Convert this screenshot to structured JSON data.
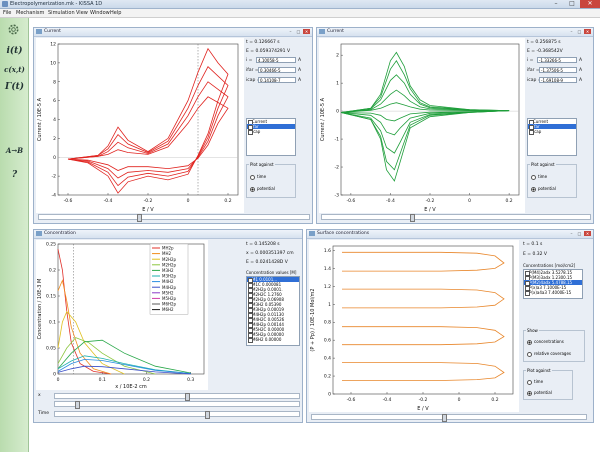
{
  "app": {
    "title": "Electropolymerization.mk - KISSA 1D"
  },
  "window_controls": {
    "minimize": "–",
    "maximize": "□",
    "close": "✕"
  },
  "menu": [
    "File",
    "Mechanism",
    "Simulation",
    "View",
    "Window",
    "Help"
  ],
  "sidebar": {
    "items": [
      "i(t)",
      "c(x,t)",
      "Γ(t)",
      "A→B",
      "?"
    ]
  },
  "panels": {
    "current_red": {
      "title": "Current",
      "t": "t = 0.126667 s",
      "E": "E = 0.059374291 V",
      "i_label": "i =",
      "i_val": "4.10058-5",
      "i_unit": "A",
      "ifar_label": "ifar =",
      "ifar_val": "0.30466-5",
      "ifar_unit": "A",
      "icap_label": "icap =",
      "icap_val": "0.14108-7",
      "icap_unit": "A",
      "list": [
        "Current",
        "ifar",
        "icap"
      ],
      "plot_against": "Plot against",
      "opt_time": "time",
      "opt_potential": "potential",
      "ylabel": "Current / 10E-5 A",
      "xlabel": "E / V",
      "yticks": [
        "12",
        "10",
        "8",
        "6",
        "4",
        "2",
        "0",
        "-2",
        "-4"
      ],
      "xticks": [
        "-0.6",
        "-0.4",
        "-0.2",
        "0",
        "0.2"
      ]
    },
    "current_green": {
      "title": "Current",
      "t": "t = 0.256875 s",
      "E": "E = -0.368542V",
      "i_label": "i =",
      "i_val": "-1.33266-5",
      "i_unit": "A",
      "ifar_label": "ifar =",
      "ifar_val": "-1.37506-5",
      "ifar_unit": "A",
      "icap_label": "icap =",
      "icap_val": "-1.69108-9",
      "icap_unit": "A",
      "list": [
        "Current",
        "ifar",
        "icap"
      ],
      "plot_against": "Plot against",
      "opt_time": "time",
      "opt_potential": "potential",
      "ylabel": "Current / 10E-5 A",
      "xlabel": "E / V",
      "yticks": [
        "2",
        "1",
        "0",
        "-1",
        "-2",
        "-3"
      ],
      "xticks": [
        "-0.6",
        "-0.4",
        "-0.2",
        "0",
        "0.2"
      ]
    },
    "concentration": {
      "title": "Concentration",
      "t": "t = 0.145208 s",
      "x": "x = 0.000351397 cm",
      "E": "E = 0.0241428D V",
      "cv_label": "Concentration values [M]",
      "cv": [
        "M1 0.0101...",
        "M1C   0.000081",
        "M2H2p 0.0001.",
        "M2H2C 1.2760",
        "M2H2p 0.06908",
        "M3H2  0.05390",
        "M3H2p 0.00019",
        "M4H2p 0.01130",
        "M4H2C 0.00526",
        "M4H2p 0.00144",
        "M5H2C 0.00000",
        "M5H2p 0.00000",
        "M6H2  0.00000"
      ],
      "legend": [
        "MH2p",
        "MH2",
        "M2H2p",
        "M2H2p",
        "M3H2",
        "M3H2p",
        "M4H2",
        "M4H2p",
        "M5H2",
        "M5H2p",
        "M6H2p",
        "M6H2"
      ],
      "legend_colors": [
        "#e0302a",
        "#f08c1c",
        "#e0c020",
        "#8cc63f",
        "#2aa84a",
        "#1cb0b0",
        "#2a8ce0",
        "#3a4ec8",
        "#8a3ac8",
        "#d03aa8",
        "#5a5a5a",
        "#1a1a1a"
      ],
      "ylabel": "Concentration / 10E-3 M",
      "xlabel": "x / 10E-2 cm",
      "yticks": [
        "0.25",
        "0.2",
        "0.15",
        "0.1",
        "0.05",
        "0"
      ],
      "xticks": [
        "0",
        "0.1",
        "0.2",
        "0.3"
      ],
      "x_slider_label": "x",
      "time_slider_label": "Time"
    },
    "surface": {
      "title": "Surface concentrations",
      "t": "t = 0.1 s",
      "E": "E = 0.32 V",
      "cv_label": "Concentrations [mol/cm2]",
      "cv": [
        "P(M4)2adx 3.5278.15",
        "P(M3)3adx 1.2300.15",
        "P(M2)4adx 5.4788.15",
        "P(x)a3   7.1000E-15",
        "P(x)a4a3 7.4000E-15"
      ],
      "show_label": "Show",
      "opt_conc": "concentrations",
      "opt_cov": "relative coverages",
      "plot_against": "Plot against",
      "opt_time": "time",
      "opt_potential": "potential",
      "ylabel": "(P + Pp) / 10E-10 Mol/m2",
      "xlabel": "E / V",
      "yticks": [
        "1.6",
        "1.4",
        "1.2",
        "1",
        "0.8",
        "0.6",
        "0.4",
        "0.2",
        "0"
      ],
      "xticks": [
        "-0.6",
        "-0.4",
        "-0.2",
        "0",
        "0.2"
      ]
    }
  },
  "chart_data": [
    {
      "type": "line",
      "xlabel": "E / V",
      "ylabel": "Current / 10E-5 A",
      "xlim": [
        -0.65,
        0.25
      ],
      "ylim": [
        -4,
        12
      ],
      "series": [
        {
          "x": [
            -0.6,
            -0.45,
            -0.4,
            -0.35,
            -0.3,
            -0.2,
            -0.1,
            0.0,
            0.05,
            0.1,
            0.15,
            0.2,
            0.15,
            0.1,
            0.05,
            0.0,
            -0.1,
            -0.2,
            -0.3,
            -0.35,
            -0.4,
            -0.5,
            -0.6
          ],
          "y": [
            -0.2,
            0.2,
            1.2,
            3.2,
            1.8,
            0.6,
            2.0,
            6.0,
            9.0,
            11.5,
            10.0,
            8.8,
            6.0,
            2.5,
            0.2,
            -1.8,
            -2.4,
            -2.0,
            -2.6,
            -3.8,
            -2.0,
            -0.6,
            -0.2
          ]
        },
        {
          "x": [
            -0.6,
            -0.45,
            -0.4,
            -0.35,
            -0.3,
            -0.2,
            -0.1,
            0.0,
            0.05,
            0.1,
            0.15,
            0.2,
            0.15,
            0.1,
            0.05,
            0.0,
            -0.1,
            -0.2,
            -0.3,
            -0.35,
            -0.4,
            -0.5,
            -0.6
          ],
          "y": [
            -0.2,
            0.2,
            0.9,
            2.4,
            1.4,
            0.5,
            1.7,
            5.2,
            7.6,
            9.6,
            8.6,
            7.6,
            5.2,
            2.1,
            0.1,
            -1.5,
            -2.0,
            -1.7,
            -2.1,
            -3.0,
            -1.6,
            -0.5,
            -0.2
          ]
        },
        {
          "x": [
            -0.6,
            -0.45,
            -0.4,
            -0.35,
            -0.3,
            -0.2,
            -0.1,
            0.0,
            0.05,
            0.1,
            0.15,
            0.2,
            0.15,
            0.1,
            0.05,
            0.0,
            -0.1,
            -0.2,
            -0.3,
            -0.35,
            -0.4,
            -0.5,
            -0.6
          ],
          "y": [
            -0.2,
            0.1,
            0.6,
            1.6,
            1.0,
            0.4,
            1.4,
            4.4,
            6.4,
            8.0,
            7.2,
            6.4,
            4.4,
            1.7,
            0.0,
            -1.2,
            -1.6,
            -1.4,
            -1.6,
            -2.2,
            -1.2,
            -0.4,
            -0.2
          ]
        },
        {
          "x": [
            -0.6,
            -0.45,
            -0.4,
            -0.35,
            -0.3,
            -0.2,
            -0.1,
            0.0,
            0.05,
            0.1,
            0.15,
            0.2,
            0.15,
            0.1,
            0.05,
            0.0,
            -0.1,
            -0.2,
            -0.3,
            -0.35,
            -0.4,
            -0.5,
            -0.6
          ],
          "y": [
            -0.2,
            0.1,
            0.3,
            0.8,
            0.5,
            0.3,
            1.1,
            3.6,
            5.2,
            6.4,
            5.8,
            5.2,
            3.6,
            1.3,
            -0.1,
            -0.9,
            -1.2,
            -1.0,
            -1.0,
            -1.4,
            -0.8,
            -0.3,
            -0.2
          ]
        }
      ]
    },
    {
      "type": "line",
      "xlabel": "E / V",
      "ylabel": "Current / 10E-5 A",
      "xlim": [
        -0.65,
        0.25
      ],
      "ylim": [
        -3,
        2.4
      ],
      "series": [
        {
          "x": [
            -0.65,
            -0.5,
            -0.45,
            -0.4,
            -0.37,
            -0.33,
            -0.3,
            -0.25,
            -0.2,
            0.0,
            0.2,
            0.0,
            -0.2,
            -0.3,
            -0.35,
            -0.38,
            -0.42,
            -0.45,
            -0.5,
            -0.65
          ],
          "y": [
            -0.05,
            0.1,
            0.6,
            1.8,
            2.1,
            1.6,
            0.9,
            0.4,
            0.2,
            0.05,
            0.02,
            -0.05,
            -0.2,
            -0.6,
            -1.8,
            -2.5,
            -2.1,
            -1.0,
            -0.3,
            -0.05
          ]
        },
        {
          "x": [
            -0.65,
            -0.5,
            -0.45,
            -0.4,
            -0.37,
            -0.33,
            -0.3,
            -0.25,
            -0.2,
            0.0,
            0.2,
            0.0,
            -0.2,
            -0.3,
            -0.35,
            -0.38,
            -0.42,
            -0.45,
            -0.5,
            -0.65
          ],
          "y": [
            -0.05,
            0.1,
            0.5,
            1.5,
            1.8,
            1.3,
            0.8,
            0.3,
            0.15,
            0.05,
            0.02,
            -0.05,
            -0.15,
            -0.5,
            -1.5,
            -2.1,
            -1.8,
            -0.9,
            -0.3,
            -0.05
          ]
        },
        {
          "x": [
            -0.65,
            -0.5,
            -0.45,
            -0.4,
            -0.37,
            -0.33,
            -0.3,
            -0.25,
            -0.2,
            0.0,
            0.2,
            0.0,
            -0.2,
            -0.3,
            -0.35,
            -0.38,
            -0.42,
            -0.45,
            -0.5,
            -0.65
          ],
          "y": [
            -0.05,
            0.08,
            0.4,
            1.1,
            1.3,
            1.0,
            0.6,
            0.25,
            0.12,
            0.04,
            0.02,
            -0.04,
            -0.12,
            -0.4,
            -1.1,
            -1.5,
            -1.3,
            -0.7,
            -0.25,
            -0.05
          ]
        },
        {
          "x": [
            -0.65,
            -0.5,
            -0.45,
            -0.4,
            -0.37,
            -0.33,
            -0.3,
            -0.25,
            -0.2,
            0.0,
            0.2,
            0.0,
            -0.2,
            -0.3,
            -0.35,
            -0.38,
            -0.42,
            -0.45,
            -0.5,
            -0.65
          ],
          "y": [
            -0.05,
            0.05,
            0.25,
            0.6,
            0.75,
            0.55,
            0.35,
            0.15,
            0.08,
            0.03,
            0.02,
            -0.03,
            -0.08,
            -0.25,
            -0.6,
            -0.85,
            -0.75,
            -0.4,
            -0.15,
            -0.05
          ]
        },
        {
          "x": [
            -0.65,
            -0.5,
            -0.45,
            -0.4,
            -0.37,
            -0.33,
            -0.3,
            -0.25,
            -0.2,
            0.0,
            0.2,
            0.0,
            -0.2,
            -0.3,
            -0.35,
            -0.38,
            -0.42,
            -0.45,
            -0.5,
            -0.65
          ],
          "y": [
            -0.05,
            0.03,
            0.1,
            0.25,
            0.3,
            0.22,
            0.15,
            0.07,
            0.04,
            0.02,
            0.01,
            -0.02,
            -0.04,
            -0.1,
            -0.25,
            -0.35,
            -0.3,
            -0.15,
            -0.07,
            -0.05
          ]
        }
      ]
    },
    {
      "type": "line",
      "xlabel": "x / 10E-2 cm",
      "ylabel": "Concentration / 10E-3 M",
      "xlim": [
        0,
        0.33
      ],
      "ylim": [
        0,
        0.25
      ],
      "series": [
        {
          "x": [
            0,
            0.01,
            0.02,
            0.03,
            0.05,
            0.08,
            0.12
          ],
          "y": [
            0.24,
            0.2,
            0.12,
            0.06,
            0.02,
            0.005,
            0.0
          ]
        },
        {
          "x": [
            0,
            0.01,
            0.02,
            0.03,
            0.05,
            0.08,
            0.12
          ],
          "y": [
            0.16,
            0.18,
            0.14,
            0.09,
            0.04,
            0.01,
            0.0
          ]
        },
        {
          "x": [
            0,
            0.01,
            0.02,
            0.04,
            0.06,
            0.1,
            0.15
          ],
          "y": [
            0.05,
            0.1,
            0.12,
            0.1,
            0.06,
            0.02,
            0.0
          ]
        },
        {
          "x": [
            0,
            0.02,
            0.04,
            0.07,
            0.1,
            0.15,
            0.22
          ],
          "y": [
            0.02,
            0.05,
            0.07,
            0.06,
            0.04,
            0.015,
            0.0
          ]
        },
        {
          "x": [
            0,
            0.03,
            0.06,
            0.1,
            0.15,
            0.22,
            0.3
          ],
          "y": [
            0.01,
            0.04,
            0.062,
            0.065,
            0.04,
            0.015,
            0.002
          ]
        },
        {
          "x": [
            0,
            0.03,
            0.06,
            0.1,
            0.15,
            0.22,
            0.3
          ],
          "y": [
            0.01,
            0.025,
            0.035,
            0.03,
            0.02,
            0.008,
            0.001
          ]
        },
        {
          "x": [
            0,
            0.03,
            0.06,
            0.1,
            0.15,
            0.22,
            0.3
          ],
          "y": [
            0.005,
            0.02,
            0.028,
            0.026,
            0.018,
            0.007,
            0.001
          ]
        },
        {
          "x": [
            0,
            0.03,
            0.06,
            0.1,
            0.15,
            0.22,
            0.3
          ],
          "y": [
            0.003,
            0.01,
            0.015,
            0.014,
            0.01,
            0.004,
            0.0
          ]
        }
      ]
    },
    {
      "type": "line",
      "xlabel": "E / V",
      "ylabel": "(P + Pp) / 10E-10 Mol/m2",
      "xlim": [
        -0.7,
        0.3
      ],
      "ylim": [
        0,
        1.65
      ],
      "series": [
        {
          "x": [
            -0.65,
            -0.4,
            -0.1,
            0.1,
            0.2,
            0.25,
            0.2,
            0.1,
            -0.1,
            -0.4,
            -0.65
          ],
          "y": [
            1.58,
            1.58,
            1.58,
            1.57,
            1.54,
            1.46,
            1.4,
            1.38,
            1.37,
            1.37,
            1.37
          ]
        },
        {
          "x": [
            -0.65,
            -0.4,
            -0.1,
            0.1,
            0.2,
            0.25,
            0.2,
            0.1,
            -0.1,
            -0.4,
            -0.65
          ],
          "y": [
            1.17,
            1.17,
            1.17,
            1.16,
            1.13,
            1.06,
            0.99,
            0.97,
            0.96,
            0.96,
            0.96
          ]
        },
        {
          "x": [
            -0.65,
            -0.4,
            -0.1,
            0.1,
            0.2,
            0.25,
            0.2,
            0.1,
            -0.1,
            -0.4,
            -0.65
          ],
          "y": [
            0.75,
            0.75,
            0.75,
            0.74,
            0.71,
            0.64,
            0.58,
            0.56,
            0.55,
            0.55,
            0.55
          ]
        },
        {
          "x": [
            -0.65,
            -0.4,
            -0.1,
            0.1,
            0.2,
            0.25,
            0.2,
            0.1,
            -0.1,
            -0.4,
            -0.65
          ],
          "y": [
            0.35,
            0.35,
            0.35,
            0.34,
            0.31,
            0.24,
            0.18,
            0.16,
            0.15,
            0.15,
            0.15
          ]
        }
      ]
    }
  ]
}
